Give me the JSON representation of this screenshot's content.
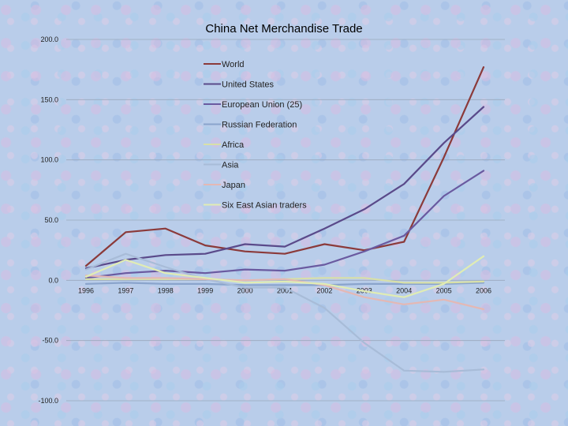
{
  "chart_data": {
    "type": "line",
    "title": "China Net Merchandise Trade",
    "xlabel": "",
    "ylabel": "",
    "ylim": [
      -100,
      200
    ],
    "yticks": [
      "200.0",
      "150.0",
      "100.0",
      "50.0",
      "0.0",
      "-50.0",
      "-100.0"
    ],
    "categories": [
      "1996",
      "1997",
      "1998",
      "1999",
      "2000",
      "2001",
      "2002",
      "2003",
      "2004",
      "2005",
      "2006"
    ],
    "grid": true,
    "legend_placement": "top-center",
    "series": [
      {
        "name": "World",
        "color": "#8b3a3a",
        "values": [
          12,
          40,
          43,
          29,
          24,
          22,
          30,
          25,
          32,
          102,
          177
        ]
      },
      {
        "name": "United States",
        "color": "#5a4a8a",
        "values": [
          10,
          17,
          21,
          22,
          30,
          28,
          43,
          59,
          80,
          114,
          144
        ]
      },
      {
        "name": "European Union (25)",
        "color": "#6a5aa0",
        "values": [
          2,
          6,
          8,
          6,
          9,
          8,
          13,
          24,
          37,
          70,
          91
        ]
      },
      {
        "name": "Russian Federation",
        "color": "#8aa4cc",
        "values": [
          -3,
          -2,
          -3,
          -3,
          -4,
          -4,
          -4,
          -3,
          -3,
          -3,
          -2
        ]
      },
      {
        "name": "Africa",
        "color": "#d8e0a8",
        "values": [
          1,
          1,
          1,
          1,
          0,
          1,
          2,
          2,
          -2,
          -2,
          -1
        ]
      },
      {
        "name": "Asia",
        "color": "#a8bcd8",
        "values": [
          9,
          22,
          11,
          1,
          -6,
          -6,
          -23,
          -52,
          -75,
          -76,
          -74
        ]
      },
      {
        "name": "Japan",
        "color": "#e4b8b4",
        "values": [
          4,
          2,
          2,
          1,
          0,
          1,
          -4,
          -14,
          -20,
          -16,
          -24
        ]
      },
      {
        "name": "Six East Asian traders",
        "color": "#e0ecb4",
        "values": [
          3,
          17,
          6,
          2,
          -2,
          -1,
          -3,
          -9,
          -14,
          -3,
          20
        ]
      }
    ]
  }
}
